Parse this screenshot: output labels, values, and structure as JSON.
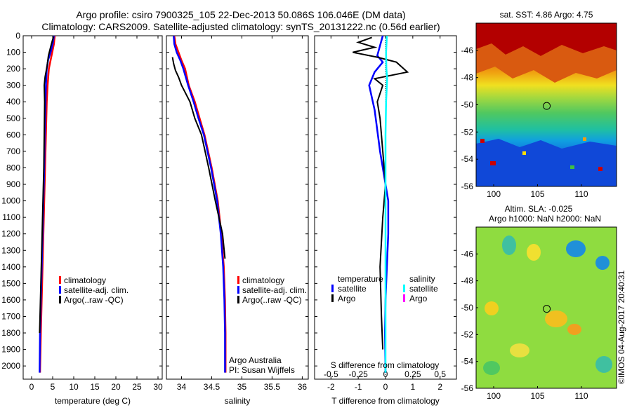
{
  "header": {
    "line1": "Argo profile: csiro 7900325_105 22-Dec-2013 50.086S 106.046E (DM data)",
    "line2": "Climatology: CARS2009. Satellite-adjusted climatology: synTS_20131222.nc (0.56d earlier)"
  },
  "side_stamp": "©IMOS 04-Aug-2017 20:40:31",
  "colors": {
    "climatology": "#ff0000",
    "satellite": "#0000ff",
    "argo": "#000000",
    "satellite_salinity": "#00ffff",
    "argo_salinity": "#ff00ff"
  },
  "chart_data": [
    {
      "type": "line",
      "id": "temperature",
      "xlabel": "temperature (deg C)",
      "xlim": [
        -2,
        31
      ],
      "ylim": [
        2080,
        0
      ],
      "y_reversed": true,
      "xticks": [
        0,
        5,
        10,
        15,
        20,
        25,
        30
      ],
      "yticks": [
        0,
        100,
        200,
        300,
        400,
        500,
        600,
        700,
        800,
        900,
        1000,
        1100,
        1200,
        1300,
        1400,
        1500,
        1600,
        1700,
        1800,
        1900,
        2000
      ],
      "legend": [
        "climatology",
        "satellite-adj. clim.",
        "Argo(..raw -QC)"
      ],
      "series": [
        {
          "name": "climatology",
          "color": "#ff0000",
          "x": [
            5.5,
            5.3,
            4.9,
            4.5,
            4.1,
            3.8,
            3.6,
            3.5,
            3.4,
            3.2,
            3.0,
            2.8,
            2.6,
            2.4,
            2.2,
            2.0
          ],
          "y": [
            0,
            50,
            100,
            150,
            200,
            300,
            400,
            500,
            600,
            800,
            1000,
            1200,
            1400,
            1600,
            1800,
            2040
          ]
        },
        {
          "name": "satellite-adj. clim.",
          "color": "#0000ff",
          "x": [
            5.3,
            5.0,
            4.5,
            3.9,
            3.6,
            3.4,
            3.3,
            3.2,
            3.1,
            3.0,
            2.8,
            2.6,
            2.4,
            2.2,
            2.0,
            1.9
          ],
          "y": [
            0,
            50,
            100,
            150,
            200,
            300,
            400,
            500,
            600,
            800,
            1000,
            1200,
            1400,
            1600,
            1800,
            2040
          ]
        },
        {
          "name": "Argo(..raw -QC)",
          "color": "#000000",
          "x": [
            5.2,
            4.6,
            4.0,
            3.7,
            3.2,
            3.0,
            3.1,
            3.0,
            2.9,
            2.7,
            2.5,
            2.3,
            2.1,
            1.9
          ],
          "y": [
            5,
            60,
            120,
            180,
            250,
            300,
            400,
            600,
            800,
            1000,
            1200,
            1400,
            1600,
            1800
          ]
        }
      ]
    },
    {
      "type": "line",
      "id": "salinity",
      "xlabel": "salinity",
      "xlim": [
        33.75,
        36.1
      ],
      "ylim": [
        2080,
        0
      ],
      "y_reversed": true,
      "xticks": [
        34,
        34.5,
        35,
        35.5,
        36
      ],
      "legend": [
        "climatology",
        "satellite-adj. clim.",
        "Argo(..raw -QC)"
      ],
      "annotation": [
        "Argo Australia",
        "PI: Susan Wijffels"
      ],
      "series": [
        {
          "name": "climatology",
          "color": "#ff0000",
          "x": [
            33.88,
            33.9,
            33.95,
            34.0,
            34.06,
            34.12,
            34.22,
            34.3,
            34.38,
            34.5,
            34.6,
            34.66,
            34.7,
            34.72,
            34.73,
            34.73
          ],
          "y": [
            0,
            50,
            100,
            150,
            200,
            300,
            400,
            500,
            600,
            800,
            1000,
            1200,
            1400,
            1600,
            1800,
            2040
          ]
        },
        {
          "name": "satellite-adj. clim.",
          "color": "#0000ff",
          "x": [
            33.87,
            33.88,
            33.92,
            33.98,
            34.03,
            34.11,
            34.2,
            34.28,
            34.37,
            34.49,
            34.59,
            34.65,
            34.69,
            34.71,
            34.72,
            34.72
          ],
          "y": [
            0,
            50,
            100,
            150,
            200,
            300,
            400,
            500,
            600,
            800,
            1000,
            1200,
            1400,
            1600,
            1800,
            2040
          ]
        },
        {
          "name": "Argo(..raw -QC)",
          "color": "#000000",
          "x": [
            33.85,
            33.87,
            33.9,
            33.95,
            34.0,
            34.14,
            34.22,
            34.33,
            34.45,
            34.56,
            34.68,
            34.72
          ],
          "y": [
            130,
            170,
            210,
            250,
            300,
            400,
            500,
            600,
            800,
            1000,
            1200,
            1350
          ]
        }
      ]
    },
    {
      "type": "line",
      "id": "differences",
      "xlabel": "T difference from climatology",
      "xlabel_top": "S difference from climatology",
      "xlim": [
        -2.6,
        2.6
      ],
      "ylim": [
        2080,
        0
      ],
      "y_reversed": true,
      "xticks": [
        -2,
        -1,
        0,
        1,
        2
      ],
      "xticks_top": [
        -0.5,
        -0.25,
        0,
        0.25,
        0.5
      ],
      "legend_temperature_title": "temperature",
      "legend_salinity_title": "salinity",
      "legend_temperature": [
        "satellite",
        "Argo"
      ],
      "legend_salinity": [
        "satellite",
        "Argo"
      ],
      "series": [
        {
          "name": "temperature satellite",
          "color": "#0000ff",
          "x": [
            -0.1,
            -0.2,
            -0.3,
            -0.1,
            -0.4,
            -0.6,
            -0.4,
            -0.2,
            0,
            0.1,
            0.1,
            0.05,
            0,
            -0.02,
            0
          ],
          "y": [
            0,
            60,
            120,
            160,
            220,
            300,
            450,
            700,
            900,
            1000,
            1200,
            1400,
            1600,
            1800,
            2040
          ]
        },
        {
          "name": "temperature Argo",
          "color": "#000000",
          "x": [
            -0.5,
            -1.0,
            -0.4,
            -1.2,
            -0.3,
            0.4,
            0.8,
            -0.4,
            -0.1,
            -0.3,
            -0.2,
            -0.1,
            0,
            -0.1,
            -0.2,
            -0.15,
            -0.1
          ],
          "y": [
            10,
            40,
            70,
            100,
            130,
            160,
            220,
            260,
            300,
            400,
            500,
            700,
            900,
            1100,
            1400,
            1700,
            1900
          ]
        },
        {
          "name": "salinity satellite",
          "color": "#00ffff",
          "x": [
            0.05,
            0.02,
            0.03,
            0.06,
            0.05,
            0.02,
            0,
            0,
            0,
            0,
            0,
            0
          ],
          "y": [
            0,
            100,
            200,
            260,
            300,
            400,
            600,
            800,
            1000,
            1400,
            1800,
            2040
          ]
        }
      ]
    },
    {
      "type": "heatmap",
      "id": "sst",
      "title": "sat. SST: 4.86 Argo: 4.75",
      "xlim": [
        98,
        114
      ],
      "ylim": [
        -56,
        -44
      ],
      "xticks": [
        100,
        105,
        110
      ],
      "yticks": [
        -46,
        -48,
        -50,
        -52,
        -54,
        -56
      ],
      "marker": {
        "lon": 106.046,
        "lat": -50.086
      }
    },
    {
      "type": "heatmap",
      "id": "sla",
      "title_line1": "Altim. SLA: -0.025",
      "title_line2": "Argo h1000: NaN h2000: NaN",
      "xlim": [
        98,
        114
      ],
      "ylim": [
        -56,
        -44
      ],
      "xticks": [
        100,
        105,
        110
      ],
      "yticks": [
        -46,
        -48,
        -50,
        -52,
        -54,
        -56
      ],
      "marker": {
        "lon": 106.046,
        "lat": -50.086
      }
    }
  ]
}
